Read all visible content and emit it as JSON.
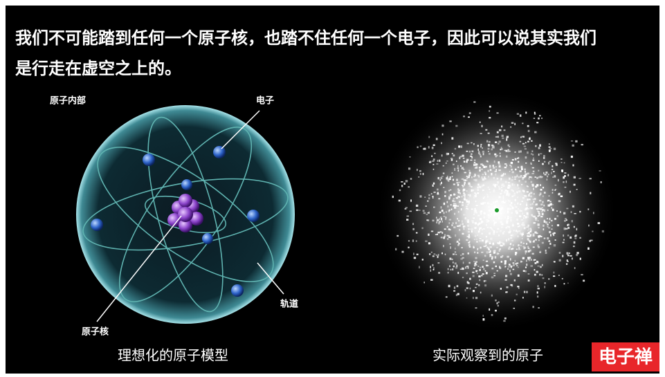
{
  "title": {
    "lines": [
      "我们不可能踏到任何一个原子核，也踏不住任何一个电子，因此可以说其实我们",
      "是行走在虚空之上的。"
    ]
  },
  "labels": {
    "atom_interior": "原子内部",
    "electron": "电子",
    "orbit": "轨道",
    "nucleus": "原子核"
  },
  "captions": {
    "ideal_model": "理想化的原子模型",
    "observed": "实际观察到的原子"
  },
  "logo": "电子禅"
}
